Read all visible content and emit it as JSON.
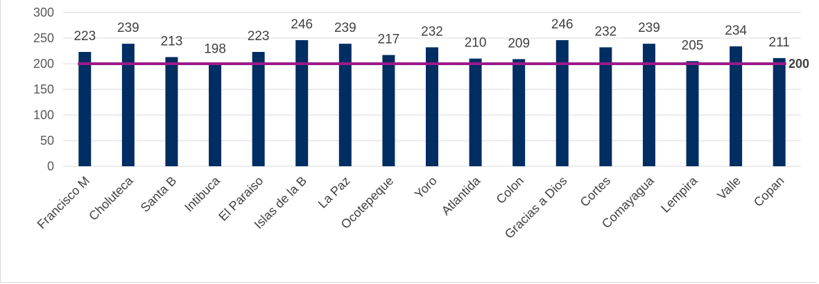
{
  "chart_data": {
    "type": "bar",
    "title": "",
    "xlabel": "",
    "ylabel": "",
    "ylim": [
      0,
      300
    ],
    "yticks": [
      0,
      50,
      100,
      150,
      200,
      250,
      300
    ],
    "grid": true,
    "legend": "none",
    "categories": [
      "Francisco M",
      "Choluteca",
      "Santa B",
      "Intibuca",
      "El Paraiso",
      "Islas de la B",
      "La Paz",
      "Ocotepeque",
      "Yoro",
      "Atlantida",
      "Colon",
      "Gracias a Dios",
      "Cortes",
      "Comayagua",
      "Lempira",
      "Valle",
      "Copan"
    ],
    "series": [
      {
        "values": [
          223,
          239,
          213,
          198,
          223,
          246,
          239,
          217,
          232,
          210,
          209,
          246,
          232,
          239,
          205,
          234,
          211
        ],
        "color": "#002d62"
      }
    ],
    "reference_line": {
      "value": 200,
      "label": "200",
      "color": "#9c1a8a"
    }
  }
}
